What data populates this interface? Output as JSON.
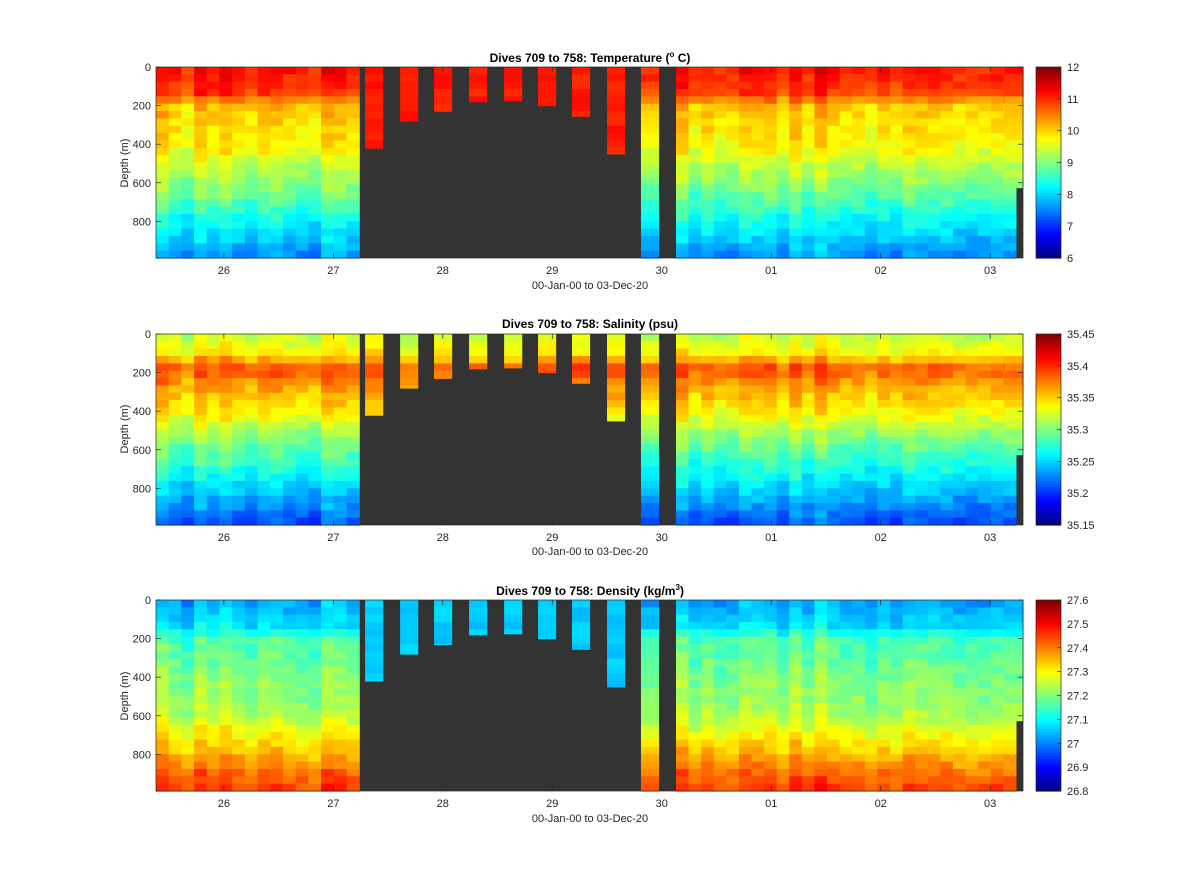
{
  "colors": {
    "gap": "#333333",
    "axis": "#262626",
    "background": "#ffffff"
  },
  "chart_data": [
    {
      "type": "heatmap",
      "variable": "temperature",
      "title_main": "Dives 709 to 758: Temperature (",
      "title_sup": "o",
      "title_tail": " C)",
      "ylabel": "Depth (m)",
      "xlabel": "00-Jan-00 to 03-Dec-20",
      "xticks": [
        "26",
        "27",
        "28",
        "29",
        "30",
        "01",
        "02",
        "03"
      ],
      "xtick_positions": [
        26,
        27,
        28,
        29,
        30,
        31,
        32,
        33
      ],
      "xlim": [
        25.38,
        33.3
      ],
      "yticks": [
        "0",
        "200",
        "400",
        "600",
        "800"
      ],
      "ytick_values": [
        0,
        200,
        400,
        600,
        800
      ],
      "ylim": [
        0,
        990
      ],
      "yreversed": true,
      "clim": [
        6,
        12
      ],
      "cbar_ticks": [
        "6",
        "7",
        "8",
        "9",
        "10",
        "11",
        "12"
      ],
      "cbar_values": [
        6,
        7,
        8,
        9,
        10,
        11,
        12
      ],
      "colormap": "jet",
      "gap_color": "#333333",
      "profile": [
        [
          0,
          11.2
        ],
        [
          140,
          10.9
        ],
        [
          200,
          10.1
        ],
        [
          400,
          9.8
        ],
        [
          600,
          9.1
        ],
        [
          800,
          8.3
        ],
        [
          990,
          7.6
        ]
      ],
      "short_dive_value": 11.1
    },
    {
      "type": "heatmap",
      "variable": "salinity",
      "title_main": "Dives 709 to 758: Salinity (psu)",
      "title_sup": "",
      "title_tail": "",
      "ylabel": "Depth (m)",
      "xlabel": "00-Jan-00 to 03-Dec-20",
      "xticks": [
        "26",
        "27",
        "28",
        "29",
        "30",
        "01",
        "02",
        "03"
      ],
      "xtick_positions": [
        26,
        27,
        28,
        29,
        30,
        31,
        32,
        33
      ],
      "xlim": [
        25.38,
        33.3
      ],
      "yticks": [
        "0",
        "200",
        "400",
        "600",
        "800"
      ],
      "ytick_values": [
        0,
        200,
        400,
        600,
        800
      ],
      "ylim": [
        0,
        990
      ],
      "yreversed": true,
      "clim": [
        35.15,
        35.45
      ],
      "cbar_ticks": [
        "35.15",
        "35.2",
        "35.25",
        "35.3",
        "35.35",
        "35.4",
        "35.45"
      ],
      "cbar_values": [
        35.15,
        35.2,
        35.25,
        35.3,
        35.35,
        35.4,
        35.45
      ],
      "colormap": "jet",
      "gap_color": "#333333",
      "profile": [
        [
          0,
          35.32
        ],
        [
          100,
          35.34
        ],
        [
          180,
          35.39
        ],
        [
          250,
          35.37
        ],
        [
          400,
          35.34
        ],
        [
          600,
          35.29
        ],
        [
          800,
          35.25
        ],
        [
          990,
          35.21
        ]
      ],
      "short_dive_value": 35.36
    },
    {
      "type": "heatmap",
      "variable": "density",
      "title_main": "Dives 709 to 758: Density (kg/m",
      "title_sup": "3",
      "title_tail": ")",
      "ylabel": "Depth (m)",
      "xlabel": "00-Jan-00 to 03-Dec-20",
      "xticks": [
        "26",
        "27",
        "28",
        "29",
        "30",
        "01",
        "02",
        "03"
      ],
      "xtick_positions": [
        26,
        27,
        28,
        29,
        30,
        31,
        32,
        33
      ],
      "xlim": [
        25.38,
        33.3
      ],
      "yticks": [
        "0",
        "200",
        "400",
        "600",
        "800"
      ],
      "ytick_values": [
        0,
        200,
        400,
        600,
        800
      ],
      "ylim": [
        0,
        990
      ],
      "yreversed": true,
      "clim": [
        26.8,
        27.6
      ],
      "cbar_ticks": [
        "26.8",
        "26.9",
        "27",
        "27.1",
        "27.2",
        "27.3",
        "27.4",
        "27.5",
        "27.6"
      ],
      "cbar_values": [
        26.8,
        26.9,
        27,
        27.1,
        27.2,
        27.3,
        27.4,
        27.5,
        27.6
      ],
      "colormap": "jet",
      "gap_color": "#333333",
      "profile": [
        [
          0,
          27.03
        ],
        [
          140,
          27.08
        ],
        [
          200,
          27.16
        ],
        [
          400,
          27.2
        ],
        [
          600,
          27.24
        ],
        [
          750,
          27.33
        ],
        [
          900,
          27.42
        ],
        [
          990,
          27.46
        ]
      ],
      "short_dive_value": 27.06
    }
  ]
}
